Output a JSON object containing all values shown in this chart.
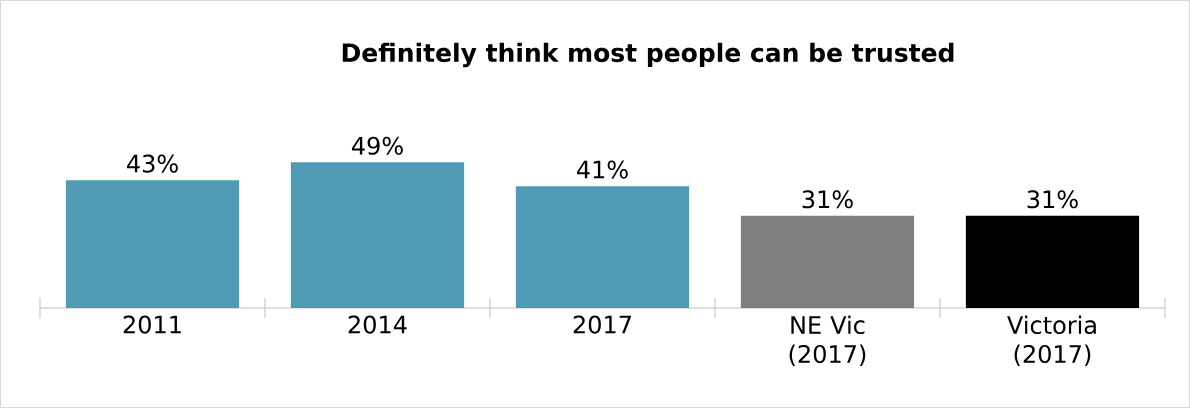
{
  "chart_data": {
    "type": "bar",
    "title": "Definitely think most people can be trusted",
    "categories": [
      "2011",
      "2014",
      "2017",
      "NE Vic (2017)",
      "Victoria (2017)"
    ],
    "values": [
      43,
      49,
      41,
      31,
      31
    ],
    "value_labels": [
      "43%",
      "49%",
      "41%",
      "31%",
      "31%"
    ],
    "colors": [
      "#4e9bb3",
      "#4e9bb3",
      "#4e9bb3",
      "#808080",
      "#000000"
    ]
  }
}
